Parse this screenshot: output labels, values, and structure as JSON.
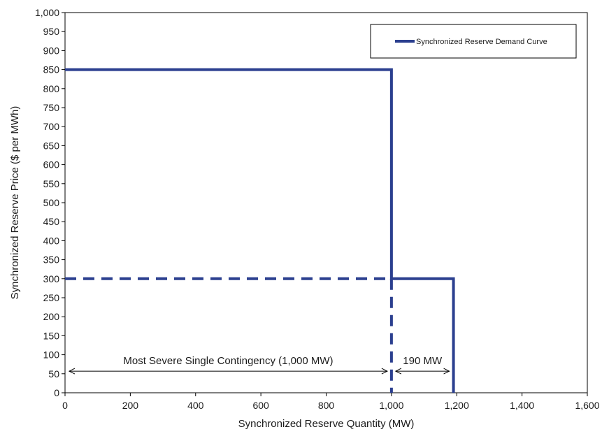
{
  "chart_data": {
    "type": "line",
    "title": "",
    "xlabel": "Synchronized Reserve Quantity (MW)",
    "ylabel": "Synchronized Reserve Price ($ per MWh)",
    "xlim": [
      0,
      1600
    ],
    "ylim": [
      0,
      1000
    ],
    "x_ticks": [
      "0",
      "200",
      "400",
      "600",
      "800",
      "1,000",
      "1,200",
      "1,400",
      "1,600"
    ],
    "y_ticks": [
      "0",
      "50",
      "100",
      "150",
      "200",
      "250",
      "300",
      "350",
      "400",
      "450",
      "500",
      "550",
      "600",
      "650",
      "700",
      "750",
      "800",
      "850",
      "900",
      "950",
      "1,000"
    ],
    "grid": false,
    "legend": {
      "placement": "top-right"
    },
    "color": "#2b3f8f",
    "series": [
      {
        "name": "Synchronized Reserve Demand Curve",
        "style": "solid",
        "points": [
          [
            0,
            850
          ],
          [
            1000,
            850
          ],
          [
            1000,
            300
          ],
          [
            1190,
            300
          ],
          [
            1190,
            0
          ]
        ]
      }
    ],
    "reference_lines": [
      {
        "style": "dashed",
        "points": [
          [
            0,
            300
          ],
          [
            1000,
            300
          ]
        ]
      },
      {
        "style": "dashed",
        "points": [
          [
            1000,
            300
          ],
          [
            1000,
            0
          ]
        ]
      }
    ],
    "annotations": [
      {
        "text": "Most Severe Single Contingency (1,000 MW)",
        "x_from": 0,
        "x_to": 1000,
        "y": 55
      },
      {
        "text": "190 MW",
        "x_from": 1000,
        "x_to": 1190,
        "y": 55
      }
    ]
  }
}
